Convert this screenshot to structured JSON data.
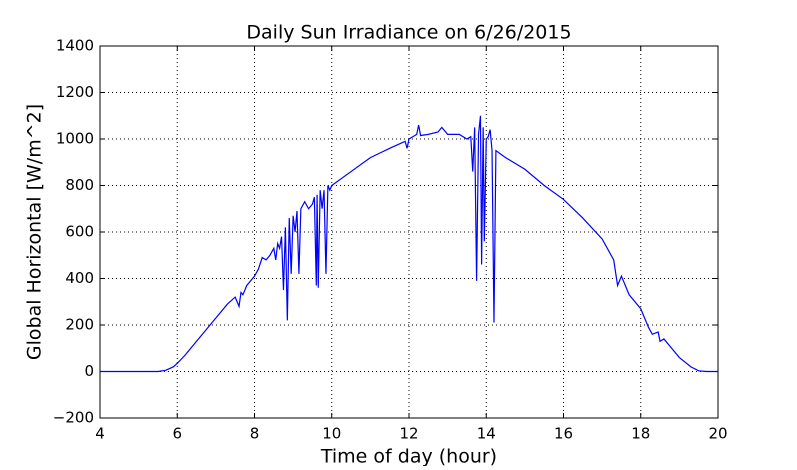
{
  "chart_data": {
    "type": "line",
    "title": "Daily Sun Irradiance on 6/26/2015",
    "x_label": "Time of day (hour)",
    "y_label": "Global Horizontal [W/m^2]",
    "xlim": [
      4,
      20
    ],
    "xticks": [
      4,
      6,
      8,
      10,
      12,
      14,
      16,
      18,
      20
    ],
    "ylim": [
      -200,
      1400
    ],
    "yticks": [
      {
        "value": -200,
        "label": "−200"
      },
      0,
      200,
      400,
      600,
      800,
      1000,
      1200,
      1400
    ],
    "grid": true,
    "series": [
      {
        "color": "#0000ff",
        "x": [
          4,
          5,
          5.5,
          5.7,
          5.9,
          6.0,
          6.2,
          6.5,
          7.0,
          7.3,
          7.5,
          7.6,
          7.65,
          7.7,
          7.8,
          8.0,
          8.1,
          8.2,
          8.3,
          8.4,
          8.5,
          8.55,
          8.6,
          8.65,
          8.7,
          8.75,
          8.8,
          8.85,
          8.9,
          8.95,
          9.0,
          9.05,
          9.1,
          9.15,
          9.2,
          9.3,
          9.4,
          9.5,
          9.55,
          9.6,
          9.62,
          9.65,
          9.7,
          9.75,
          9.8,
          9.85,
          9.9,
          9.95,
          10.0,
          10.5,
          11.0,
          11.5,
          11.9,
          11.95,
          12.0,
          12.2,
          12.25,
          12.3,
          12.5,
          12.75,
          12.85,
          13.0,
          13.3,
          13.5,
          13.6,
          13.65,
          13.7,
          13.75,
          13.8,
          13.85,
          13.88,
          13.92,
          13.95,
          14.0,
          14.05,
          14.1,
          14.15,
          14.2,
          14.25,
          14.5,
          15.0,
          15.5,
          16.0,
          16.5,
          17.0,
          17.3,
          17.4,
          17.5,
          17.7,
          18.0,
          18.2,
          18.3,
          18.45,
          18.5,
          18.6,
          18.8,
          19.0,
          19.3,
          19.5,
          19.7,
          20
        ],
        "values": [
          0,
          0,
          0,
          5,
          20,
          35,
          70,
          130,
          230,
          290,
          320,
          280,
          340,
          330,
          370,
          410,
          440,
          490,
          480,
          500,
          530,
          480,
          550,
          530,
          580,
          350,
          620,
          220,
          660,
          420,
          670,
          600,
          690,
          420,
          700,
          730,
          700,
          720,
          750,
          370,
          760,
          360,
          780,
          700,
          780,
          420,
          800,
          780,
          800,
          860,
          920,
          960,
          990,
          960,
          1000,
          1020,
          1060,
          1015,
          1020,
          1030,
          1050,
          1020,
          1020,
          1000,
          1010,
          860,
          1050,
          390,
          1020,
          1100,
          460,
          1050,
          560,
          1000,
          1010,
          1040,
          950,
          210,
          950,
          920,
          870,
          800,
          740,
          660,
          570,
          480,
          370,
          410,
          330,
          270,
          190,
          160,
          170,
          130,
          140,
          100,
          60,
          20,
          3,
          0,
          0
        ]
      }
    ]
  }
}
